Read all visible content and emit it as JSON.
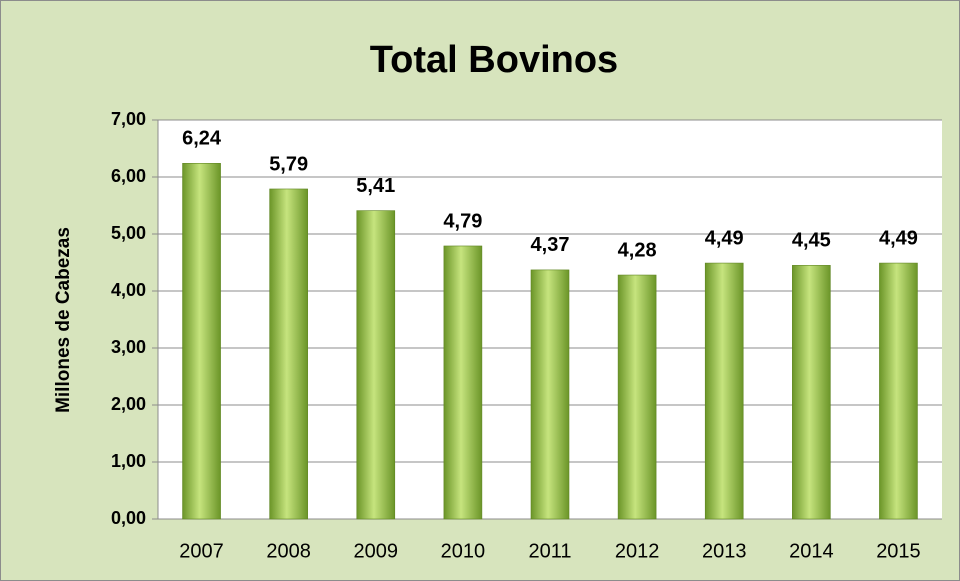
{
  "chart_data": {
    "type": "bar",
    "title": "Total Bovinos",
    "y_label": "Millones de Cabezas",
    "categories": [
      "2007",
      "2008",
      "2009",
      "2010",
      "2011",
      "2012",
      "2013",
      "2014",
      "2015"
    ],
    "values": [
      6.24,
      5.79,
      5.41,
      4.79,
      4.37,
      4.28,
      4.49,
      4.45,
      4.49
    ],
    "value_labels": [
      "6,24",
      "5,79",
      "5,41",
      "4,79",
      "4,37",
      "4,28",
      "4,49",
      "4,45",
      "4,49"
    ],
    "color": "#9bc44a",
    "ylim": [
      0,
      7
    ],
    "yticks": [
      {
        "value": 0,
        "label": "0,00"
      },
      {
        "value": 1,
        "label": "1,00"
      },
      {
        "value": 2,
        "label": "2,00"
      },
      {
        "value": 3,
        "label": "3,00"
      },
      {
        "value": 4,
        "label": "4,00"
      },
      {
        "value": 5,
        "label": "5,00"
      },
      {
        "value": 6,
        "label": "6,00"
      },
      {
        "value": 7,
        "label": "7,00"
      }
    ],
    "grid": true
  }
}
